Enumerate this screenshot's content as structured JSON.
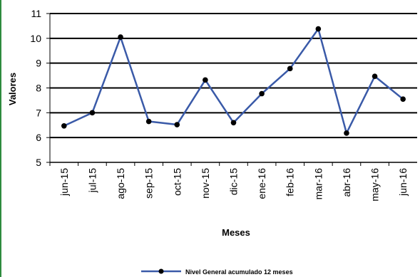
{
  "chart_data": {
    "type": "line",
    "title": "",
    "xlabel": "Meses",
    "ylabel": "Valores",
    "ylim": [
      5,
      11
    ],
    "yticks": [
      "5",
      "6",
      "7",
      "8",
      "9",
      "10",
      "11"
    ],
    "grid": "horizontal",
    "legend_position": "bottom",
    "categories": [
      "jun-15",
      "jul-15",
      "ago-15",
      "sep-15",
      "oct-15",
      "nov-15",
      "dic-15",
      "ene-16",
      "feb-16",
      "mar-16",
      "abr-16",
      "may-16",
      "jun-16"
    ],
    "series": [
      {
        "name": "Nivel General acumulado 12 meses",
        "color": "#3a5aa8",
        "marker_color": "#000000",
        "values": [
          6.47,
          7.0,
          10.05,
          6.65,
          6.52,
          8.32,
          6.6,
          7.77,
          8.78,
          10.38,
          6.18,
          8.47,
          7.55
        ]
      }
    ]
  }
}
